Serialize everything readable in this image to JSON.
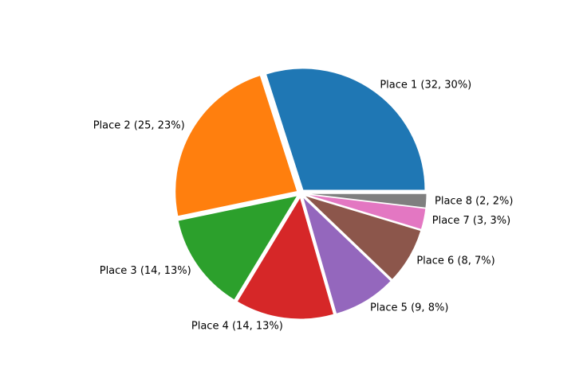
{
  "chart_data": {
    "type": "pie",
    "categories": [
      "Place 1",
      "Place 2",
      "Place 3",
      "Place 4",
      "Place 5",
      "Place 6",
      "Place 7",
      "Place 8"
    ],
    "values": [
      32,
      25,
      14,
      14,
      9,
      8,
      3,
      2
    ],
    "labels": [
      "Place 1 (32, 30%)",
      "Place 2 (25, 23%)",
      "Place 3 (14, 13%)",
      "Place 4 (14, 13%)",
      "Place 5 (9, 8%)",
      "Place 6 (8, 7%)",
      "Place 7 (3, 3%)",
      "Place 8 (2, 2%)"
    ],
    "colors": [
      "#1f77b4",
      "#ff7f0e",
      "#2ca02c",
      "#d62728",
      "#9467bd",
      "#8c564b",
      "#e377c2",
      "#7f7f7f"
    ],
    "start_angle_deg": 0,
    "direction": "counterclockwise",
    "exploded": true
  }
}
